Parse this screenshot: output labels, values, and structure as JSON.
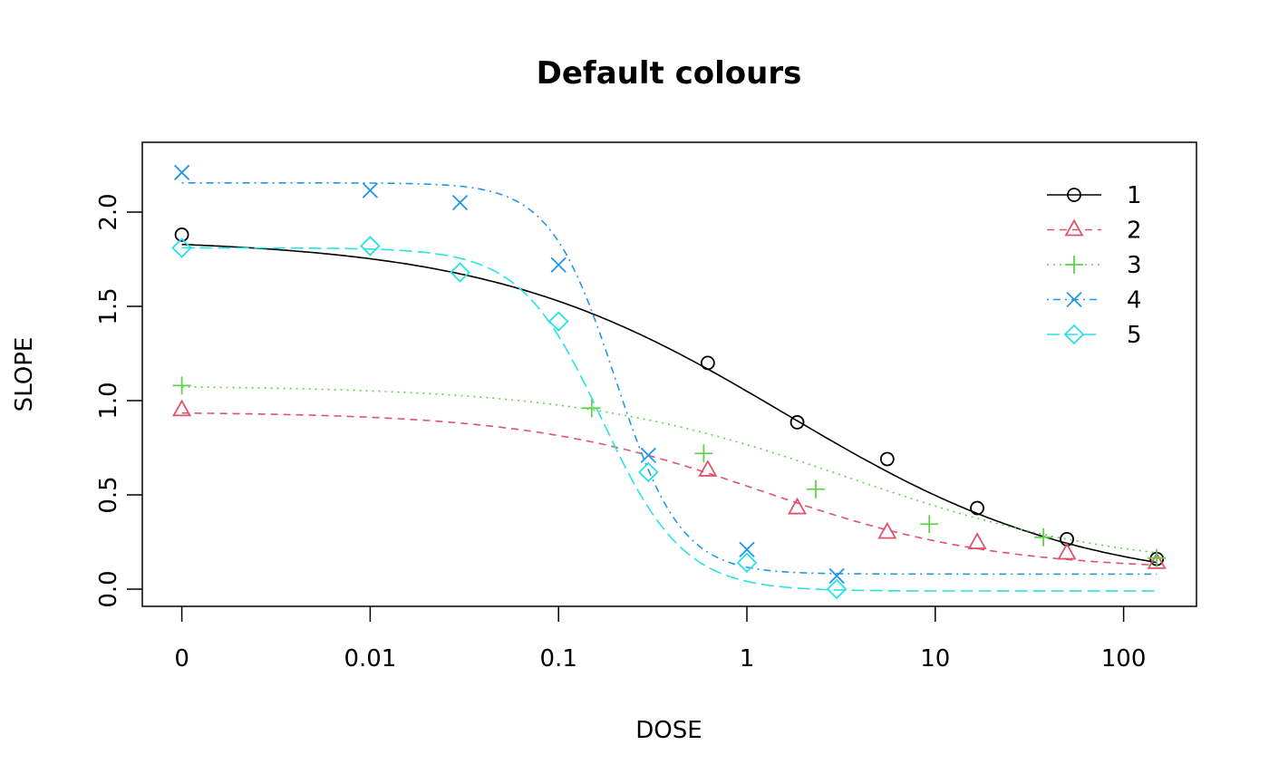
{
  "chart_data": {
    "type": "line",
    "title": "Default colours",
    "xlabel": "DOSE",
    "ylabel": "SLOPE",
    "x_scale": "log",
    "x_ticks": [
      {
        "value": 0.001,
        "label": "0"
      },
      {
        "value": 0.01,
        "label": "0.01"
      },
      {
        "value": 0.1,
        "label": "0.1"
      },
      {
        "value": 1,
        "label": "1"
      },
      {
        "value": 10,
        "label": "10"
      },
      {
        "value": 100,
        "label": "100"
      }
    ],
    "y_ticks": [
      {
        "value": 0,
        "label": "0.0"
      },
      {
        "value": 0.5,
        "label": "0.5"
      },
      {
        "value": 1,
        "label": "1.0"
      },
      {
        "value": 1.5,
        "label": "1.5"
      },
      {
        "value": 2,
        "label": "2.0"
      }
    ],
    "ylim": [
      -0.09,
      2.35
    ],
    "grid": false,
    "legend_position": "top-right",
    "series": [
      {
        "name": "1",
        "color": "#000000",
        "marker": "circle",
        "line": "solid",
        "points": [
          [
            0,
            1.88
          ],
          [
            0.62,
            1.2
          ],
          [
            1.85,
            0.885
          ],
          [
            5.56,
            0.69
          ],
          [
            16.7,
            0.43
          ],
          [
            50,
            0.265
          ],
          [
            150,
            0.16
          ]
        ]
      },
      {
        "name": "2",
        "color": "#DF536B",
        "marker": "triangle",
        "line": "dashed",
        "points": [
          [
            0,
            0.95
          ],
          [
            0.62,
            0.63
          ],
          [
            1.85,
            0.43
          ],
          [
            5.56,
            0.3
          ],
          [
            16.7,
            0.245
          ],
          [
            50,
            0.19
          ],
          [
            150,
            0.14
          ]
        ]
      },
      {
        "name": "3",
        "color": "#61D04F",
        "marker": "plus",
        "line": "dotted",
        "points": [
          [
            0,
            1.08
          ],
          [
            0.15,
            0.96
          ],
          [
            0.59,
            0.72
          ],
          [
            2.32,
            0.53
          ],
          [
            9.3,
            0.345
          ],
          [
            37.5,
            0.275
          ],
          [
            150,
            0.165
          ]
        ]
      },
      {
        "name": "4",
        "color": "#2297E6",
        "marker": "cross",
        "line": "dotdash",
        "points": [
          [
            0,
            2.21
          ],
          [
            0.01,
            2.115
          ],
          [
            0.03,
            2.05
          ],
          [
            0.1,
            1.72
          ],
          [
            0.3,
            0.71
          ],
          [
            1,
            0.21
          ],
          [
            3,
            0.07
          ]
        ]
      },
      {
        "name": "5",
        "color": "#28E2E5",
        "marker": "diamond",
        "line": "longdash",
        "points": [
          [
            0,
            1.81
          ],
          [
            0.01,
            1.82
          ],
          [
            0.03,
            1.68
          ],
          [
            0.1,
            1.42
          ],
          [
            0.3,
            0.62
          ],
          [
            1,
            0.14
          ],
          [
            3,
            0.0
          ]
        ]
      }
    ]
  }
}
